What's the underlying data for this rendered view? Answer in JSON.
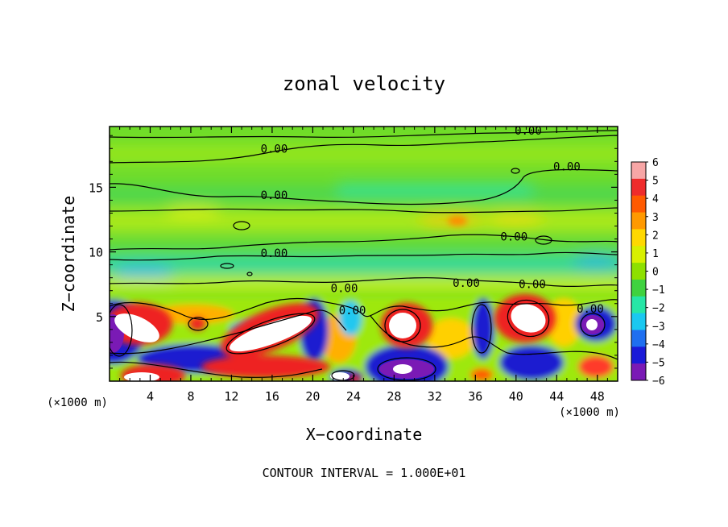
{
  "chart_data": {
    "type": "heatmap",
    "title": "zonal velocity",
    "xlabel": "X−coordinate",
    "ylabel": "Z−coordinate",
    "x_unit_label": "(×1000 m)",
    "z_unit_label": "(×1000 m)",
    "footer": "CONTOUR INTERVAL = 1.000E+01",
    "xlim": [
      0,
      50
    ],
    "ylim": [
      0,
      19.7
    ],
    "x_ticks": [
      4,
      8,
      12,
      16,
      20,
      24,
      28,
      32,
      36,
      40,
      44,
      48
    ],
    "x_tick_labels": [
      "4",
      "8",
      "12",
      "16",
      "20",
      "24",
      "28",
      "32",
      "36",
      "40",
      "44",
      "48"
    ],
    "y_ticks": [
      5,
      10,
      15
    ],
    "y_tick_labels": [
      "5",
      "10",
      "15"
    ],
    "colorbar": {
      "min": -6,
      "max": 6,
      "labels": [
        "6",
        "5",
        "4",
        "3",
        "2",
        "1",
        "0",
        "−1",
        "−2",
        "−3",
        "−4",
        "−5",
        "−6"
      ],
      "colors": [
        "#f7a6a6",
        "#ee2b2b",
        "#ff5a00",
        "#ff9900",
        "#ffd800",
        "#d8f000",
        "#8ee000",
        "#3fd23f",
        "#26e6a6",
        "#1ac8f0",
        "#1f6ff0",
        "#1a1ad8",
        "#7a1ab5"
      ]
    },
    "contour_labels": [
      {
        "text": "0.00",
        "x": 16.2,
        "z": 18.0
      },
      {
        "text": "0.00",
        "x": 16.2,
        "z": 14.4
      },
      {
        "text": "0.00",
        "x": 16.2,
        "z": 9.9
      },
      {
        "text": "0.00",
        "x": 41.2,
        "z": 19.4
      },
      {
        "text": "0.00",
        "x": 45.0,
        "z": 16.6
      },
      {
        "text": "0.00",
        "x": 39.8,
        "z": 11.2
      },
      {
        "text": "0.00",
        "x": 23.1,
        "z": 7.2
      },
      {
        "text": "0.00",
        "x": 35.1,
        "z": 7.6
      },
      {
        "text": "0.00",
        "x": 41.6,
        "z": 7.5
      },
      {
        "text": "0.00",
        "x": 23.9,
        "z": 5.5
      },
      {
        "text": "0.00",
        "x": 47.3,
        "z": 5.6
      }
    ],
    "features": [
      {
        "sign": "positive",
        "peak": 6,
        "x": 2.7,
        "z": 4.2
      },
      {
        "sign": "positive",
        "peak": 6,
        "x": 0.9,
        "z": 0.3
      },
      {
        "sign": "positive",
        "peak": 6,
        "x": 16.2,
        "z": 3.3
      },
      {
        "sign": "positive",
        "peak": 6,
        "x": 29.0,
        "z": 4.2
      },
      {
        "sign": "positive",
        "peak": 6,
        "x": 41.6,
        "z": 4.6
      },
      {
        "sign": "positive",
        "peak": 4,
        "x": 8.2,
        "z": 4.5
      },
      {
        "sign": "positive",
        "peak": 3,
        "x": 32.8,
        "z": 12.5
      },
      {
        "sign": "positive",
        "peak": 4,
        "x": 47.0,
        "z": 1.2
      },
      {
        "sign": "negative",
        "peak": -6,
        "x": 29.0,
        "z": 0.8
      },
      {
        "sign": "negative",
        "peak": -6,
        "x": 22.5,
        "z": 0.2
      },
      {
        "sign": "negative",
        "peak": -6,
        "x": 47.1,
        "z": 4.3
      },
      {
        "sign": "negative",
        "peak": -5,
        "x": 36.0,
        "z": 4.0
      },
      {
        "sign": "negative",
        "peak": -5,
        "x": 18.8,
        "z": 4.1
      },
      {
        "sign": "negative",
        "peak": -3,
        "x": 4.0,
        "z": 9.3
      }
    ]
  }
}
